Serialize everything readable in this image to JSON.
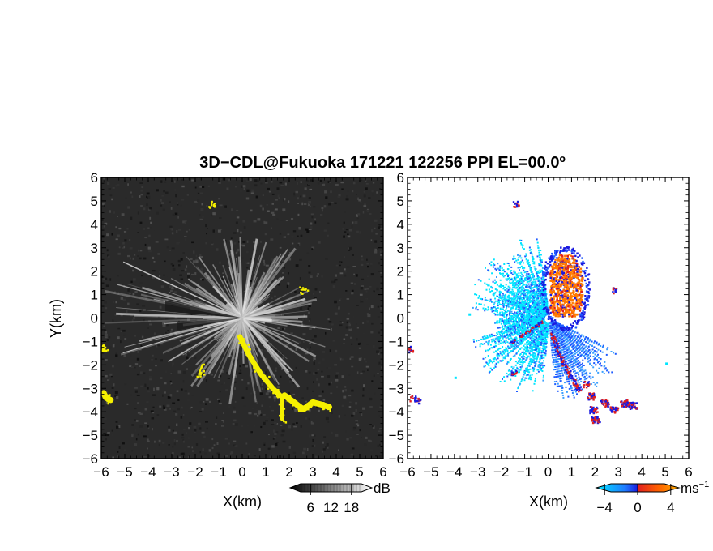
{
  "title": "3D−CDL@Fukuoka 171221 122256 PPI EL=00.0º",
  "chart_data": [
    {
      "type": "heatmap",
      "name": "reflectivity-ppi",
      "xlabel": "X(km)",
      "ylabel": "Y(km)",
      "xlim": [
        -6,
        6
      ],
      "ylim": [
        -6,
        6
      ],
      "x_ticks": [
        "−6",
        "−5",
        "−4",
        "−3",
        "−2",
        "−1",
        "0",
        "1",
        "2",
        "3",
        "4",
        "5",
        "6"
      ],
      "y_ticks": [
        "6",
        "5",
        "4",
        "3",
        "2",
        "1",
        "0",
        "−1",
        "−2",
        "−3",
        "−4",
        "−5",
        "−6"
      ],
      "background_color": "#2a2a2a",
      "highlight_color": "#f5f000",
      "highlight_features": [
        {
          "points": [
            [
              -0.1,
              -0.8
            ],
            [
              0.3,
              -1.6
            ],
            [
              0.8,
              -2.4
            ],
            [
              1.3,
              -3.0
            ],
            [
              1.6,
              -3.3
            ]
          ],
          "width_km": 0.22
        },
        {
          "points": [
            [
              1.8,
              -3.3
            ],
            [
              2.2,
              -3.6
            ],
            [
              2.6,
              -3.9
            ],
            [
              3.0,
              -3.6
            ],
            [
              3.4,
              -3.7
            ],
            [
              3.7,
              -3.8
            ]
          ],
          "width_km": 0.25
        },
        {
          "points": [
            [
              1.7,
              -3.4
            ],
            [
              1.7,
              -3.9
            ],
            [
              1.7,
              -4.3
            ]
          ],
          "width_km": 0.18
        },
        {
          "points": [
            [
              -5.9,
              -3.2
            ],
            [
              -5.8,
              -3.4
            ],
            [
              -5.6,
              -3.5
            ]
          ],
          "width_km": 0.25
        },
        {
          "points": [
            [
              -5.9,
              -1.2
            ],
            [
              -5.9,
              -1.4
            ]
          ],
          "width_km": 0.15
        },
        {
          "points": [
            [
              -1.7,
              -2.0
            ],
            [
              -1.85,
              -2.4
            ]
          ],
          "width_km": 0.08
        },
        {
          "points": [
            [
              2.5,
              1.2
            ],
            [
              2.7,
              1.2
            ]
          ],
          "width_km": 0.07
        },
        {
          "points": [
            [
              -1.3,
              4.9
            ],
            [
              -1.3,
              4.8
            ]
          ],
          "width_km": 0.06
        }
      ],
      "colorbar": {
        "unit": "dB",
        "tick_labels": [
          "6",
          "12",
          "18"
        ],
        "ticks": [
          6,
          12,
          18
        ],
        "range": [
          0,
          24
        ]
      }
    },
    {
      "type": "heatmap",
      "name": "doppler-velocity-ppi",
      "xlabel": "X(km)",
      "xlim": [
        -6,
        6
      ],
      "ylim": [
        -6,
        6
      ],
      "x_ticks": [
        "−6",
        "−5",
        "−4",
        "−3",
        "−2",
        "−1",
        "0",
        "1",
        "2",
        "3",
        "4",
        "5",
        "6"
      ],
      "y_ticks": [
        "6",
        "5",
        "4",
        "3",
        "2",
        "1",
        "0",
        "−1",
        "−2",
        "−3",
        "−4",
        "−5",
        "−6"
      ],
      "background_color": "#ffffff",
      "velocity_colors": [
        "#00e5ff",
        "#1f5bff",
        "#1a1adf",
        "#e02020",
        "#ff7a00"
      ],
      "colorbar": {
        "unit": "ms",
        "unit_exponent": "−1",
        "tick_labels": [
          "−4",
          "0",
          "4"
        ],
        "ticks": [
          -4,
          0,
          4
        ],
        "range": [
          -5,
          5
        ]
      }
    }
  ]
}
